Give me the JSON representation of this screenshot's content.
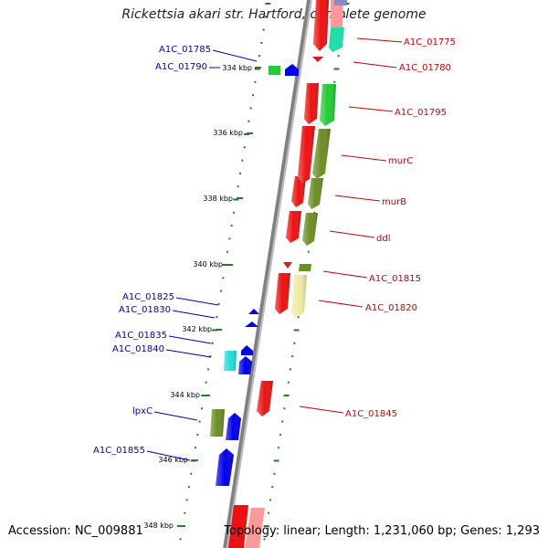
{
  "title": "Rickettsia akari str. Hartford, complete genome",
  "accession_label": "Accession: NC_009881",
  "footer_stats": "Topology: linear; Length: 1,231,060 bp; Genes: 1,293",
  "colors": {
    "forward_label": "#cc0000",
    "reverse_label": "#0000bb",
    "backbone": "#8a8a8a",
    "tick": "#2a7a2a"
  },
  "kbp_labels": [
    "334 kbp",
    "336 kbp",
    "338 kbp",
    "340 kbp",
    "342 kbp",
    "344 kbp",
    "346 kbp",
    "348 kbp"
  ],
  "forward_labels": [
    "A1C_01775",
    "A1C_01780",
    "A1C_01795",
    "murC",
    "murB",
    "ddl",
    "A1C_01815",
    "A1C_01820",
    "A1C_01845"
  ],
  "reverse_labels": [
    "A1C_01785",
    "A1C_01790",
    "A1C_01825",
    "A1C_01830",
    "A1C_01835",
    "A1C_01840",
    "lpxC",
    "A1C_01855"
  ]
}
